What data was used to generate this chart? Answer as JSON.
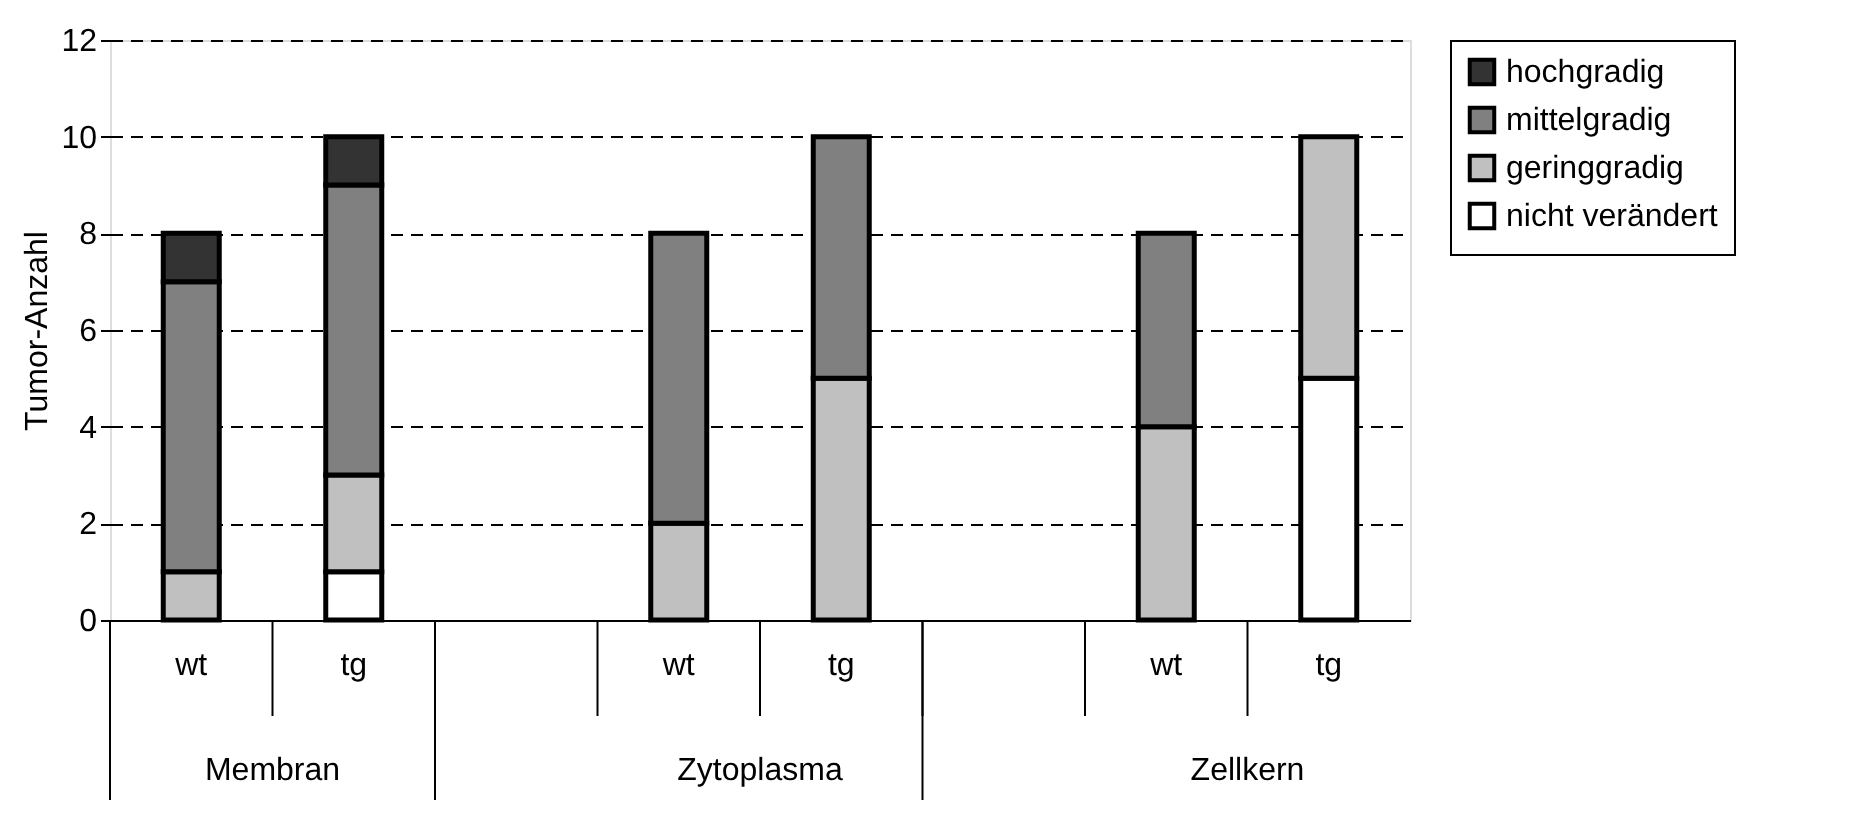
{
  "chart_data": {
    "type": "bar",
    "stacked": true,
    "ylabel": "Tumor-Anzahl",
    "categories": [
      "wt",
      "tg",
      null,
      "wt",
      "tg",
      null,
      "wt",
      "tg"
    ],
    "series": [
      {
        "name": "nicht verändert",
        "color": "#ffffff",
        "values": [
          0,
          1,
          null,
          0,
          0,
          null,
          0,
          5
        ]
      },
      {
        "name": "geringgradig",
        "color": "#c0c0c0",
        "values": [
          1,
          2,
          null,
          2,
          5,
          null,
          4,
          5
        ]
      },
      {
        "name": "mittelgradig",
        "color": "#808080",
        "values": [
          6,
          6,
          null,
          6,
          5,
          null,
          4,
          0
        ]
      },
      {
        "name": "hochgradig",
        "color": "#333333",
        "values": [
          1,
          1,
          null,
          0,
          0,
          null,
          0,
          0
        ]
      }
    ],
    "annotations": [
      "Membran",
      "Zytoplasma",
      "Zellkern"
    ],
    "ylim": [
      0,
      12
    ],
    "yticks": [
      0,
      2,
      4,
      6,
      8,
      10,
      12
    ],
    "grid": "y",
    "legend": "right"
  }
}
